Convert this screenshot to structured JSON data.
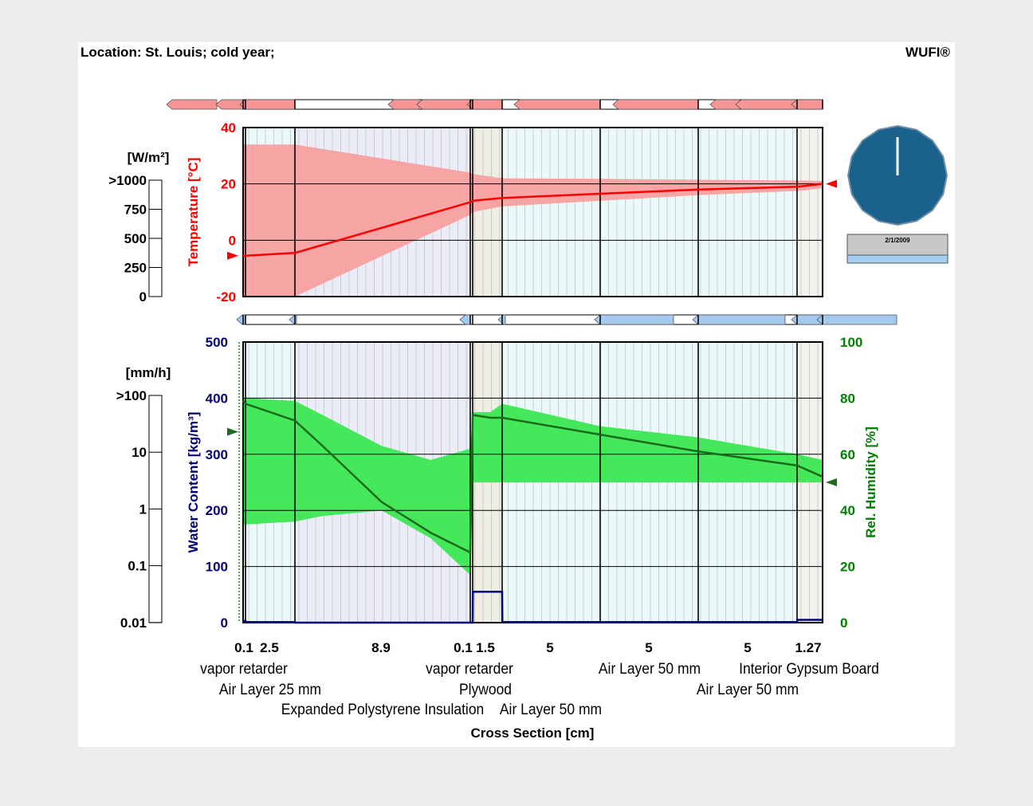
{
  "header": {
    "location": "Location: St. Louis; cold year;",
    "brand": "WUFI®"
  },
  "chart_data": {
    "type": "line",
    "title": "Location: St. Louis; cold year;",
    "xlabel": "Cross Section [cm]",
    "colors": {
      "temperature": "#ff0000",
      "temp_band": "#f8a0a0",
      "rh": "#1a6b1a",
      "rh_band": "#44e85a",
      "water_content": "#00007a",
      "green_axis": "#008000",
      "clock_face": "#1a628c",
      "date_bar": "#a4cdf0"
    },
    "layers": [
      {
        "name": "vapor retarder",
        "thickness": "0.1",
        "row": 0
      },
      {
        "name": "Air Layer 25 mm",
        "thickness": "2.5",
        "row": 1
      },
      {
        "name": "Expanded Polystyrene Insulation",
        "thickness": "8.9",
        "row": 2
      },
      {
        "name": "vapor retarder",
        "thickness": "0.1",
        "row": 0
      },
      {
        "name": "Plywood",
        "thickness": "1.5",
        "row": 1
      },
      {
        "name": "Air Layer 50 mm",
        "thickness": "5",
        "row": 2
      },
      {
        "name": "Air Layer 50 mm",
        "thickness": "5",
        "row": 0
      },
      {
        "name": "Air Layer 50 mm",
        "thickness": "5",
        "row": 1
      },
      {
        "name": "Interior Gypsum Board",
        "thickness": "1.27",
        "row": 0
      }
    ],
    "temperature": {
      "ylabel": "Temperature [°C]",
      "ylim": [
        -20,
        40
      ],
      "ticks": [
        40,
        20,
        0,
        -20
      ],
      "x_cm": [
        0,
        0.1,
        2.6,
        11.5,
        11.6,
        13.1,
        18.1,
        23.1,
        28.1,
        29.37
      ],
      "mean": [
        -5.5,
        -5.5,
        -4.5,
        13.5,
        14,
        15,
        16.5,
        18,
        19,
        20
      ],
      "max": [
        34,
        34,
        34,
        24,
        23.5,
        22,
        21.8,
        21.5,
        21.2,
        21
      ],
      "min": [
        -20,
        -20,
        -20,
        9,
        10,
        12,
        14,
        16,
        17.5,
        18.5
      ],
      "exterior_mean": -5.5,
      "interior_mean": 20
    },
    "radiation": {
      "ylabel": "[W/m²]",
      "ticks": [
        ">1000",
        "750",
        "500",
        "250",
        "0"
      ],
      "value": 0
    },
    "rain": {
      "ylabel": "[mm/h]",
      "ticks": [
        ">100",
        "10",
        "1",
        "0.1",
        "0.01"
      ],
      "value": 0
    },
    "water_content": {
      "ylabel": "Water Content [kg/m³]",
      "ylim": [
        0,
        500
      ],
      "ticks": [
        500,
        400,
        300,
        200,
        100,
        0
      ],
      "x_cm": [
        0,
        0.1,
        0.11,
        2.6,
        2.61,
        11.5,
        11.6,
        11.61,
        13.1,
        13.11,
        28.1,
        28.11,
        29.37
      ],
      "values": [
        3,
        3,
        1,
        1,
        0,
        0,
        0,
        55,
        55,
        1,
        1,
        5,
        5
      ]
    },
    "rel_humidity": {
      "ylabel": "Rel. Humidity [%]",
      "ylim": [
        0,
        100
      ],
      "ticks": [
        100,
        80,
        60,
        40,
        20,
        0
      ],
      "x_cm": [
        0,
        0.1,
        2.6,
        4.0,
        7.0,
        9.5,
        11.5,
        11.6,
        12.5,
        13.1,
        18.1,
        23.1,
        28.1,
        29.37
      ],
      "mean": [
        79,
        78,
        72,
        63,
        43,
        32,
        25,
        74,
        73,
        73,
        67,
        61,
        56,
        52
      ],
      "max": [
        80,
        80,
        79,
        74,
        63,
        58,
        62,
        75,
        75,
        78,
        70,
        66,
        60,
        58
      ],
      "min": [
        35,
        35,
        36,
        38,
        40,
        30,
        17,
        50,
        50,
        50,
        50,
        50,
        50,
        50
      ],
      "exterior_mean": 68,
      "interior_mean": 50
    },
    "clock": {
      "date": "2/1/2009",
      "progress": 0.0
    }
  }
}
